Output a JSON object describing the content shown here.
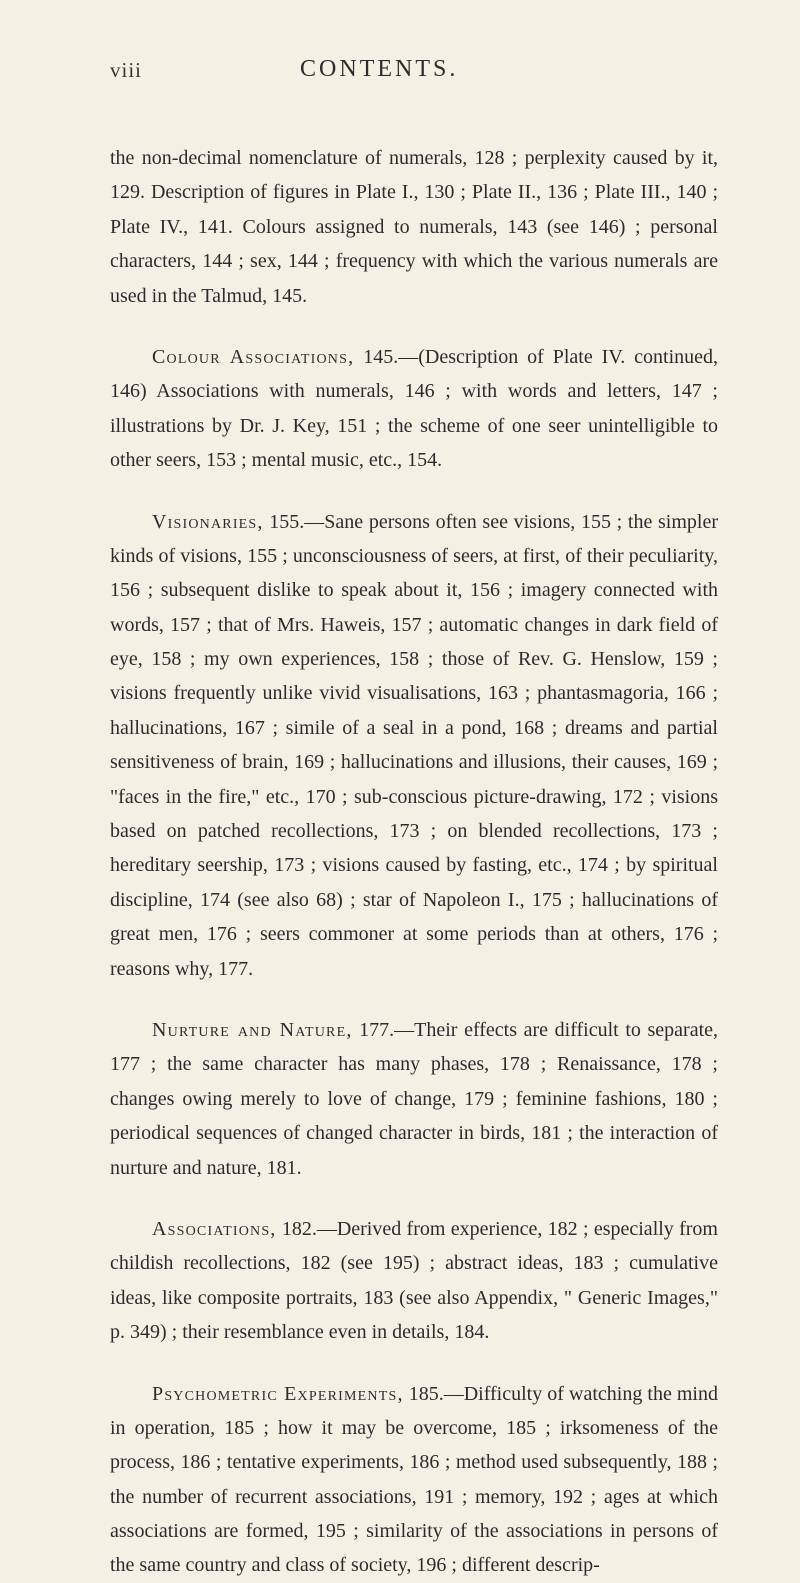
{
  "header": {
    "pageNumber": "viii",
    "title": "CONTENTS."
  },
  "sections": {
    "s1": {
      "text": "the non-decimal nomenclature of numerals, 128 ; perplexity caused by it, 129. Description of figures in Plate I., 130 ; Plate II., 136 ; Plate III., 140 ; Plate IV., 141. Colours assigned to numerals, 143 (see 146) ; personal characters, 144 ; sex, 144 ; frequency with which the various numerals are used in the Talmud, 145."
    },
    "s2": {
      "head": "Colour Associations,",
      "body": " 145.—(Description of Plate IV. continued, 146) Associations with numerals, 146 ; with words and letters, 147 ; illustrations by Dr. J. Key, 151 ; the scheme of one seer unintelligible to other seers, 153 ; mental music, etc., 154."
    },
    "s3": {
      "head": "Visionaries,",
      "body": " 155.—Sane persons often see visions, 155 ; the simpler kinds of visions, 155 ; unconsciousness of seers, at first, of their peculiarity, 156 ; subsequent dislike to speak about it, 156 ; imagery connected with words, 157 ; that of Mrs. Haweis, 157 ; automatic changes in dark field of eye, 158 ; my own experiences, 158 ; those of Rev. G. Henslow, 159 ; visions frequently unlike vivid visualisations, 163 ; phantasmagoria, 166 ; hallucinations, 167 ; simile of a seal in a pond, 168 ; dreams and partial sensitiveness of brain, 169 ; hallucinations and illusions, their causes, 169 ; \"faces in the fire,\" etc., 170 ; sub-conscious picture-drawing, 172 ; visions based on patched recollections, 173 ; on blended recollections, 173 ; hereditary seership, 173 ; visions caused by fasting, etc., 174 ; by spiritual discipline, 174 (see also 68) ; star of Napoleon I., 175 ; hallucinations of great men, 176 ; seers commoner at some periods than at others, 176 ; reasons why, 177."
    },
    "s4": {
      "head": "Nurture and Nature,",
      "body": " 177.—Their effects are difficult to separate, 177 ; the same character has many phases, 178 ; Renaissance, 178 ; changes owing merely to love of change, 179 ; feminine fashions, 180 ; periodical sequences of changed character in birds, 181 ; the interaction of nurture and nature, 181."
    },
    "s5": {
      "head": "Associations,",
      "body": " 182.—Derived from experience, 182 ; especially from childish recollections, 182 (see 195) ; abstract ideas, 183 ; cumulative ideas, like composite portraits, 183 (see also Appendix, \" Generic Images,\" p. 349) ; their resemblance even in details, 184."
    },
    "s6": {
      "head": "Psychometric Experiments,",
      "body": " 185.—Difficulty of watching the mind in operation, 185 ; how it may be overcome, 185 ; irksomeness of the process, 186 ; tentative experiments, 186 ; method used subsequently, 188 ; the number of recurrent associations, 191 ; memory, 192 ; ages at which associations are formed, 195 ; similarity of the associations in persons of the same country and class of society, 196 ; different descrip-"
    }
  }
}
